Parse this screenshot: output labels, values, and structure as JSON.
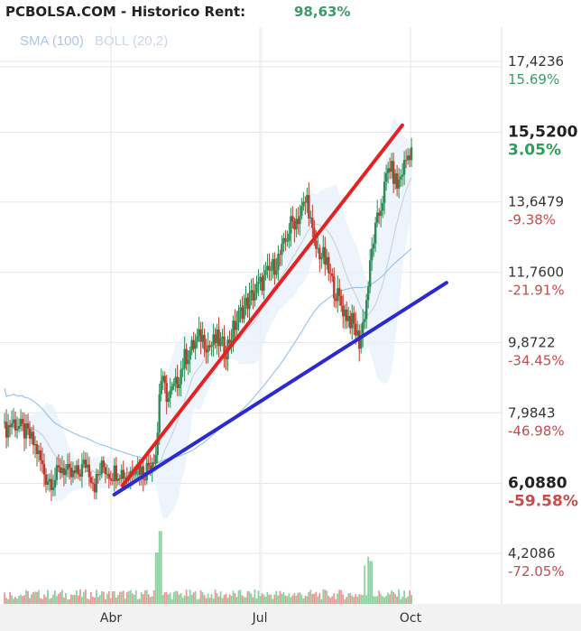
{
  "header": {
    "title": "PCBOLSA.COM - Historico  Rent:",
    "rent_value": "98,63%"
  },
  "legend": {
    "sma": "SMA (100)",
    "boll": "BOLL (20,2)"
  },
  "chart_data": {
    "type": "candlestick",
    "price_axis": {
      "labels": [
        {
          "price": 17.4236,
          "label": "17,4236",
          "pct": "15.69%",
          "pct_color": "#3a9a6a"
        },
        {
          "price": 15.52,
          "label": "15,5200",
          "pct": "3.05%",
          "pct_color": "#2e9e5a",
          "strong": true
        },
        {
          "price": 13.6479,
          "label": "13,6479",
          "pct": "-9.38%",
          "pct_color": "#c94a4a"
        },
        {
          "price": 11.76,
          "label": "11,7600",
          "pct": "-21.91%",
          "pct_color": "#c94a4a"
        },
        {
          "price": 9.8722,
          "label": "9,8722",
          "pct": "-34.45%",
          "pct_color": "#c94a4a"
        },
        {
          "price": 7.9843,
          "label": "7,9843",
          "pct": "-46.98%",
          "pct_color": "#c94a4a"
        },
        {
          "price": 6.088,
          "label": "6,0880",
          "pct": "-59.58%",
          "pct_color": "#c94a4a",
          "strong": true
        },
        {
          "price": 4.2086,
          "label": "4,2086",
          "pct": "-72.05%",
          "pct_color": "#c94a4a"
        }
      ]
    },
    "x_ticks": [
      {
        "label": "Abr",
        "day": 0
      },
      {
        "label": "Jul",
        "day": 91
      },
      {
        "label": "Oct",
        "day": 183
      }
    ],
    "price_path": [
      [
        -65,
        7.75
      ],
      [
        -60,
        8.0
      ],
      [
        -55,
        7.8
      ],
      [
        -50,
        7.6
      ],
      [
        -45,
        7.2
      ],
      [
        -40,
        6.5
      ],
      [
        -35,
        6.4
      ],
      [
        -30,
        6.8
      ],
      [
        -25,
        6.5
      ],
      [
        -20,
        6.6
      ],
      [
        -15,
        6.9
      ],
      [
        -10,
        6.3
      ],
      [
        -5,
        6.8
      ],
      [
        0,
        6.6
      ],
      [
        5,
        6.7
      ],
      [
        10,
        6.5
      ],
      [
        15,
        6.9
      ],
      [
        20,
        6.6
      ],
      [
        25,
        7.0
      ],
      [
        28,
        7.2
      ],
      [
        30,
        9.2
      ],
      [
        35,
        8.6
      ],
      [
        40,
        9.0
      ],
      [
        45,
        9.7
      ],
      [
        50,
        10.0
      ],
      [
        55,
        10.3
      ],
      [
        60,
        10.0
      ],
      [
        65,
        10.2
      ],
      [
        70,
        9.9
      ],
      [
        75,
        10.5
      ],
      [
        80,
        11.0
      ],
      [
        85,
        11.3
      ],
      [
        90,
        11.6
      ],
      [
        95,
        11.9
      ],
      [
        100,
        12.2
      ],
      [
        105,
        12.6
      ],
      [
        110,
        13.3
      ],
      [
        115,
        13.5
      ],
      [
        120,
        14.0
      ],
      [
        124,
        12.7
      ],
      [
        130,
        12.4
      ],
      [
        136,
        11.6
      ],
      [
        142,
        11.0
      ],
      [
        148,
        10.6
      ],
      [
        152,
        10.1
      ],
      [
        156,
        11.2
      ],
      [
        160,
        12.8
      ],
      [
        165,
        13.8
      ],
      [
        170,
        14.9
      ],
      [
        175,
        14.3
      ],
      [
        180,
        15.0
      ],
      [
        184,
        15.4
      ]
    ],
    "volume": {
      "baseline_label": "4,2086",
      "spikes": [
        {
          "day": 29,
          "level": 1.0
        },
        {
          "day": 30,
          "level": 0.85
        },
        {
          "day": 28,
          "level": 0.6
        },
        {
          "day": 157,
          "level": 0.55
        },
        {
          "day": 155,
          "level": 0.45
        },
        {
          "day": 159,
          "level": 0.5
        }
      ]
    },
    "trendlines": [
      {
        "name": "red-trendline",
        "color": "#e32222",
        "from": [
          7,
          6.27
        ],
        "to": [
          178,
          15.95
        ]
      },
      {
        "name": "blue-trendline",
        "color": "#2a2ad0",
        "from": [
          2,
          6.03
        ],
        "to": [
          205,
          11.72
        ]
      }
    ]
  }
}
